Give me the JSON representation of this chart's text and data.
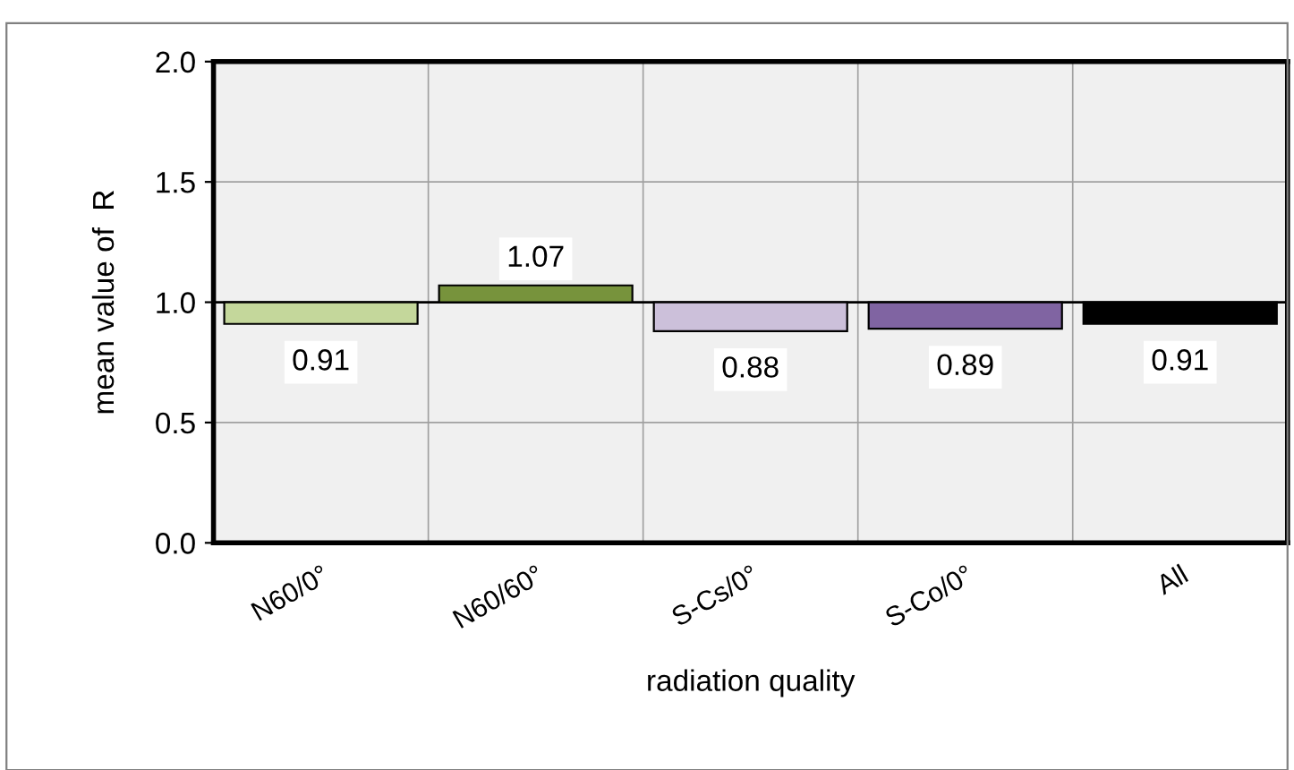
{
  "chart_data": {
    "type": "bar",
    "xlabel": "radiation quality",
    "ylabel": "mean value of  R",
    "categories": [
      "N60/0°",
      "N60/60°",
      "S-Cs/0°",
      "S-Co/0°",
      "All"
    ],
    "base": [
      1,
      1,
      1,
      1,
      1
    ],
    "values": [
      -0.09,
      0.07,
      -0.12,
      -0.11,
      -0.09
    ],
    "value_labels": [
      "0.91",
      "1.07",
      "0.88",
      "0.89",
      "0.91"
    ],
    "colors": [
      "#c4d79b",
      "#77933c",
      "#ccc0da",
      "#8064a2",
      "#000000"
    ],
    "ylim": [
      0,
      2
    ],
    "yticks": [
      {
        "value": 0,
        "label": "0.0"
      },
      {
        "value": 0.5,
        "label": "0.5"
      },
      {
        "value": 1,
        "label": "1.0"
      },
      {
        "value": 1.5,
        "label": "1.5"
      },
      {
        "value": 2,
        "label": "2.0"
      }
    ],
    "ref_lines": [
      {
        "axis": "y",
        "value": 1,
        "color": "#000000"
      }
    ],
    "grid": true
  }
}
